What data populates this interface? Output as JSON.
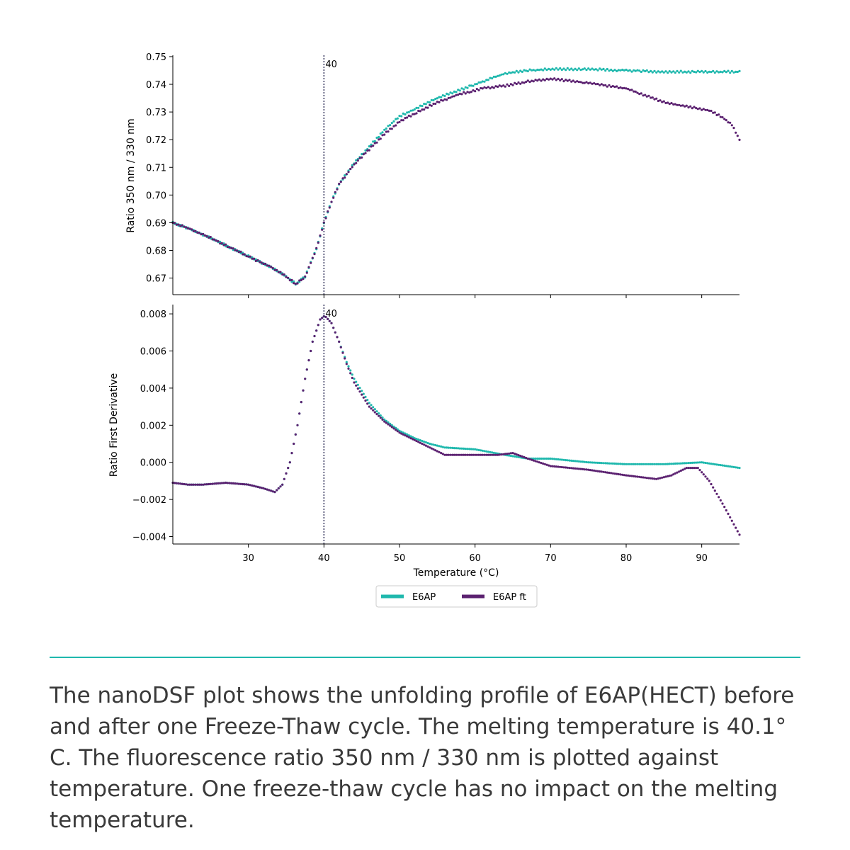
{
  "colors": {
    "e6ap": "#1fb8ad",
    "e6ap_ft": "#5b2170",
    "vline": "#33335a",
    "rule": "#1fb8ad"
  },
  "caption": "The nanoDSF plot shows the unfolding profile of E6AP(HECT) before and after one Freeze-Thaw cycle. The melting temperature is 40.1° C. The fluorescence ratio 350 nm / 330 nm is plotted against temperature. One freeze-thaw cycle has no impact on the melting temperature.",
  "chart_data": [
    {
      "type": "scatter",
      "panel": "top",
      "ylabel": "Ratio 350 nm / 330 nm",
      "xlim": [
        20,
        95
      ],
      "ylim": [
        0.664,
        0.7505
      ],
      "yticks": [
        0.67,
        0.68,
        0.69,
        0.7,
        0.71,
        0.72,
        0.73,
        0.74,
        0.75
      ],
      "ytick_labels": [
        "0.67",
        "0.68",
        "0.69",
        "0.70",
        "0.71",
        "0.72",
        "0.73",
        "0.74",
        "0.75"
      ],
      "xticks": [
        30,
        40,
        50,
        60,
        70,
        80,
        90
      ],
      "vline": {
        "x": 40,
        "label": "40"
      },
      "series": [
        {
          "name": "E6AP",
          "x": [
            20,
            22,
            25,
            28,
            31,
            33,
            35,
            36.3,
            37.5,
            39,
            40,
            41,
            42,
            44,
            46,
            48,
            50,
            52,
            55,
            58,
            61,
            64,
            67,
            70,
            75,
            80,
            85,
            90,
            95
          ],
          "y": [
            0.69,
            0.688,
            0.6845,
            0.6805,
            0.6765,
            0.674,
            0.6705,
            0.6678,
            0.6705,
            0.6805,
            0.69,
            0.6975,
            0.704,
            0.7115,
            0.7175,
            0.7235,
            0.7285,
            0.731,
            0.735,
            0.738,
            0.741,
            0.744,
            0.745,
            0.7455,
            0.7455,
            0.745,
            0.7445,
            0.7445,
            0.7445
          ]
        },
        {
          "name": "E6AP ft",
          "x": [
            20,
            22,
            25,
            28,
            31,
            33,
            35,
            36.3,
            37.5,
            39,
            40,
            41,
            42,
            44,
            46,
            48,
            50,
            52,
            55,
            58,
            61,
            64,
            67,
            70,
            75,
            80,
            83,
            85,
            88,
            91,
            92.5,
            94,
            95
          ],
          "y": [
            0.69,
            0.688,
            0.6845,
            0.6805,
            0.6765,
            0.674,
            0.6705,
            0.6678,
            0.6705,
            0.6805,
            0.69,
            0.6975,
            0.704,
            0.711,
            0.7165,
            0.722,
            0.7265,
            0.7295,
            0.7335,
            0.7365,
            0.7385,
            0.7395,
            0.741,
            0.742,
            0.7405,
            0.7385,
            0.7355,
            0.7335,
            0.732,
            0.7305,
            0.7285,
            0.7255,
            0.72
          ]
        }
      ]
    },
    {
      "type": "scatter",
      "panel": "bottom",
      "ylabel": "Ratio First Derivative",
      "xlabel": "Temperature (°C)",
      "xlim": [
        20,
        95
      ],
      "ylim": [
        -0.0044,
        0.0085
      ],
      "yticks": [
        -0.004,
        -0.002,
        0.0,
        0.002,
        0.004,
        0.006,
        0.008
      ],
      "ytick_labels": [
        "−0.004",
        "−0.002",
        "0.000",
        "0.002",
        "0.004",
        "0.006",
        "0.008"
      ],
      "xticks": [
        30,
        40,
        50,
        60,
        70,
        80,
        90
      ],
      "xtick_labels": [
        "30",
        "40",
        "50",
        "60",
        "70",
        "80",
        "90"
      ],
      "vline": {
        "x": 40,
        "label": "40"
      },
      "legend": {
        "location": "below",
        "entries": [
          "E6AP",
          "E6AP ft"
        ]
      },
      "series": [
        {
          "name": "E6AP",
          "x": [
            20,
            22,
            24,
            27,
            30,
            32,
            33.5,
            34.5,
            35.5,
            36.5,
            37.5,
            38.5,
            39.5,
            40.1,
            41,
            42,
            43,
            44,
            46,
            48,
            50,
            52,
            54,
            56,
            60,
            64,
            67,
            70,
            75,
            80,
            85,
            90,
            95
          ],
          "y": [
            -0.0011,
            -0.0012,
            -0.0012,
            -0.0011,
            -0.0012,
            -0.0014,
            -0.0016,
            -0.0012,
            0.0,
            0.002,
            0.0045,
            0.0065,
            0.0077,
            0.0079,
            0.0075,
            0.0065,
            0.0054,
            0.0045,
            0.0032,
            0.0023,
            0.0017,
            0.0013,
            0.001,
            0.0008,
            0.0007,
            0.0004,
            0.0002,
            0.0002,
            0.0,
            -0.0001,
            -0.0001,
            0.0,
            -0.0003
          ]
        },
        {
          "name": "E6AP ft",
          "x": [
            20,
            22,
            24,
            27,
            30,
            32,
            33.5,
            34.5,
            35.5,
            36.5,
            37.5,
            38.5,
            39.5,
            40.1,
            41,
            42,
            43,
            44,
            46,
            48,
            50,
            52,
            54,
            56,
            60,
            63,
            65,
            67,
            70,
            75,
            80,
            84,
            86,
            88,
            89.5,
            91,
            93,
            95
          ],
          "y": [
            -0.0011,
            -0.0012,
            -0.0012,
            -0.0011,
            -0.0012,
            -0.0014,
            -0.0016,
            -0.0012,
            0.0,
            0.002,
            0.0045,
            0.0065,
            0.0077,
            0.0079,
            0.0075,
            0.0065,
            0.0053,
            0.0043,
            0.003,
            0.0022,
            0.0016,
            0.0012,
            0.0008,
            0.0004,
            0.0004,
            0.0004,
            0.0005,
            0.0002,
            -0.0002,
            -0.0004,
            -0.0007,
            -0.0009,
            -0.0007,
            -0.0003,
            -0.0003,
            -0.001,
            -0.0024,
            -0.0039
          ]
        }
      ]
    }
  ]
}
